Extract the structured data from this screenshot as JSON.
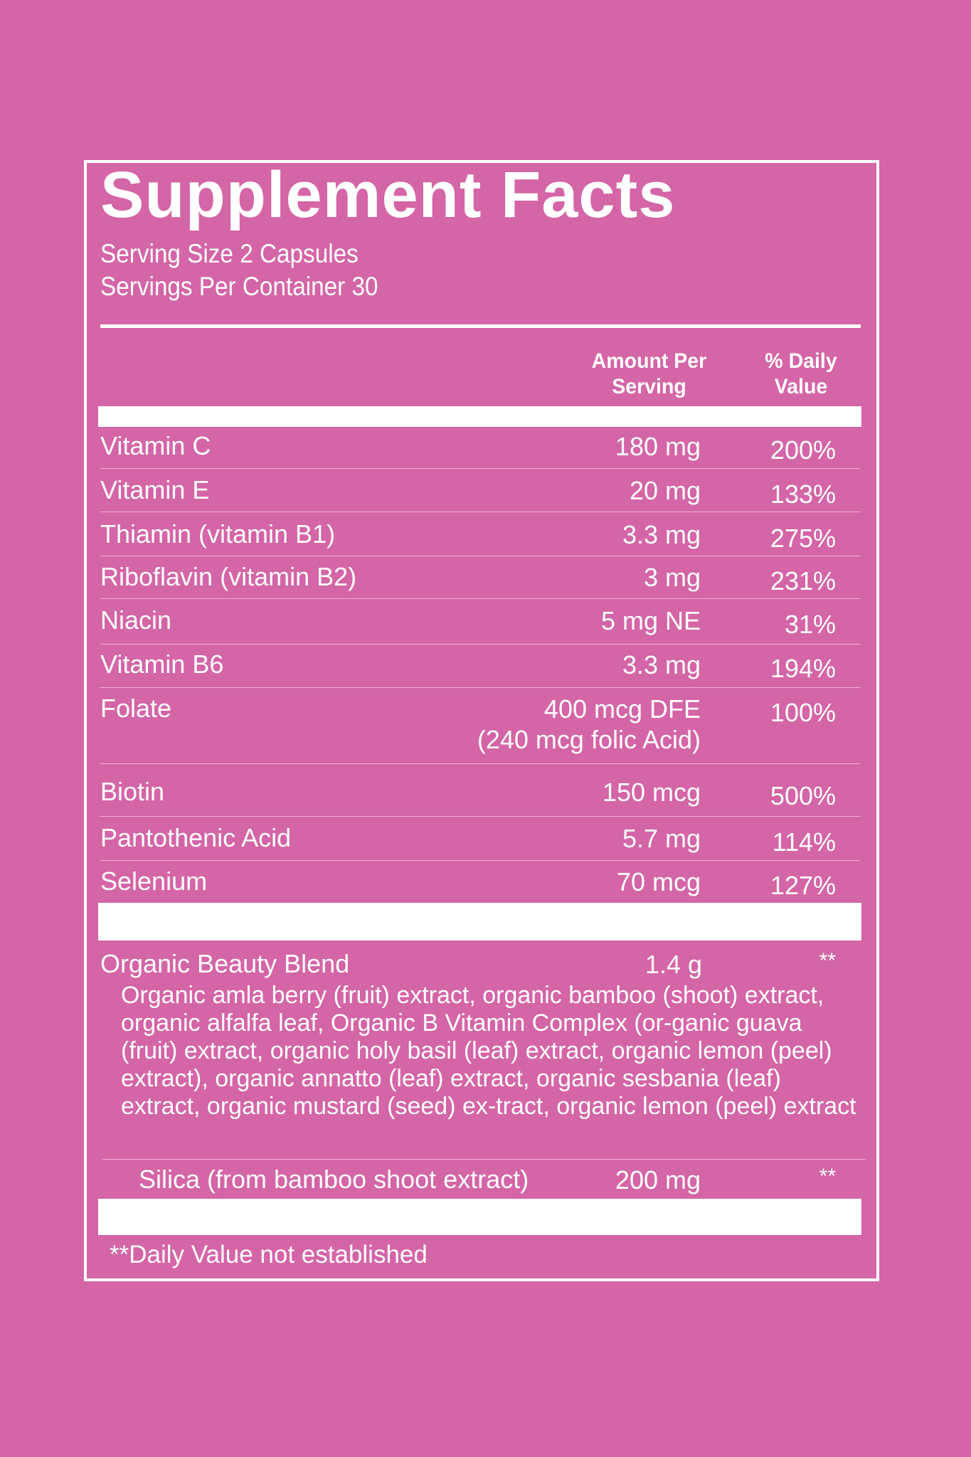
{
  "title": "Supplement Facts",
  "serving_size": "Serving Size 2 Capsules",
  "servings_per_container": "Servings Per Container 30",
  "header": {
    "amount_line1": "Amount Per",
    "amount_line2": "Serving",
    "dv_line1": "% Daily",
    "dv_line2": "Value"
  },
  "rows": [
    {
      "name": "Vitamin C",
      "amount": "180 mg",
      "dv": "200%"
    },
    {
      "name": "Vitamin E",
      "amount": "20 mg",
      "dv": "133%"
    },
    {
      "name": "Thiamin (vitamin B1)",
      "amount": "3.3 mg",
      "dv": "275%"
    },
    {
      "name": "Riboflavin (vitamin B2)",
      "amount": "3 mg",
      "dv": "231%"
    },
    {
      "name": "Niacin",
      "amount": "5 mg NE",
      "dv": "31%"
    },
    {
      "name": "Vitamin B6",
      "amount": "3.3 mg",
      "dv": "194%"
    },
    {
      "name": "Folate",
      "amount": "400 mcg DFE",
      "amount_note": "(240 mcg folic Acid)",
      "dv": "100%"
    },
    {
      "name": "Biotin",
      "amount": "150 mcg",
      "dv": "500%"
    },
    {
      "name": "Pantothenic Acid",
      "amount": "5.7 mg",
      "dv": "114%"
    },
    {
      "name": "Selenium",
      "amount": "70 mcg",
      "dv": "127%"
    }
  ],
  "blend": {
    "name": "Organic Beauty Blend",
    "amount": "1.4 g",
    "dv": "**",
    "ingredients": "Organic amla berry (fruit) extract, organic bamboo (shoot) extract, organic alfalfa leaf, Organic B Vitamin Complex (or-ganic guava (fruit) extract, organic holy basil (leaf) extract, organic lemon (peel) extract), organic annatto (leaf) extract, organic sesbania (leaf) extract, organic mustard (seed) ex-tract, organic lemon (peel) extract"
  },
  "silica": {
    "name": "Silica (from bamboo shoot extract)",
    "amount": "200 mg",
    "dv": "**"
  },
  "footnote": "**Daily Value not established",
  "colors": {
    "background": "#d465a6",
    "foreground": "#ffffff"
  }
}
